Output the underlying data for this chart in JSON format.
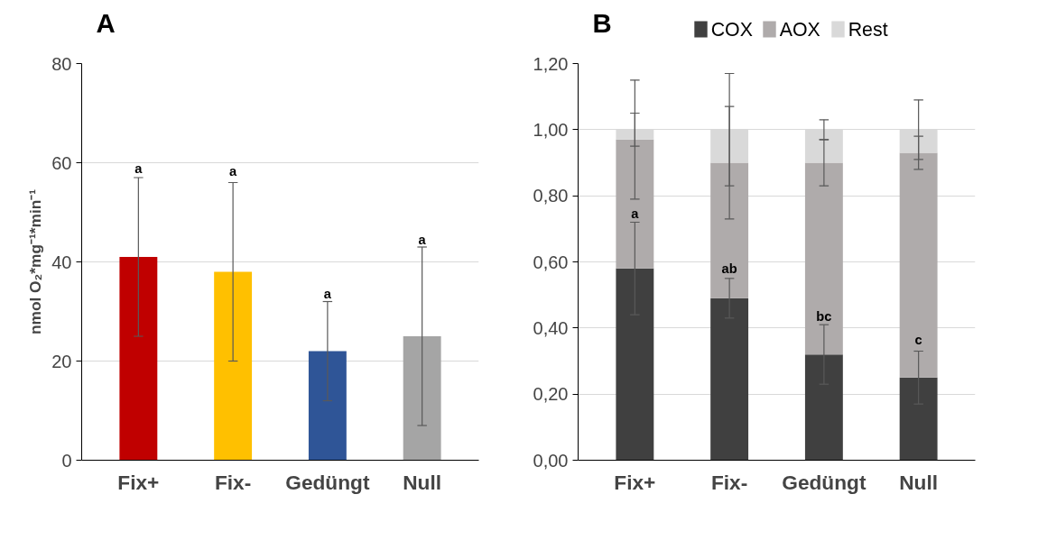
{
  "chart_data": [
    {
      "type": "bar",
      "title": "A",
      "ylabel": "nmol O₂*mg⁻¹*min⁻¹",
      "categories": [
        "Fix+",
        "Fix-",
        "Gedüngt",
        "Null"
      ],
      "values": [
        41,
        38,
        22,
        25
      ],
      "colors": [
        "#c00000",
        "#ffc000",
        "#2f5597",
        "#a5a5a5"
      ],
      "errors": [
        16,
        18,
        10,
        18
      ],
      "ylim": [
        0,
        80
      ],
      "yticks": [
        0,
        20,
        40,
        60,
        80
      ],
      "grid": "y",
      "annotations": [
        {
          "text": "a",
          "x": "Fix+",
          "y": 56.8
        },
        {
          "text": "a",
          "x": "Fix-",
          "y": 56.3
        },
        {
          "text": "a",
          "x": "Gedüngt",
          "y": 31.5
        },
        {
          "text": "a",
          "x": "Null",
          "y": 42.4
        }
      ]
    },
    {
      "type": "bar",
      "title": "B",
      "categories": [
        "Fix+",
        "Fix-",
        "Gedüngt",
        "Null"
      ],
      "stacked": true,
      "series": [
        {
          "name": "COX",
          "color": "#404040",
          "values": [
            0.58,
            0.49,
            0.32,
            0.25
          ],
          "errors": [
            0.14,
            0.06,
            0.09,
            0.08
          ]
        },
        {
          "name": "AOX",
          "color": "#afabab",
          "values": [
            0.39,
            0.41,
            0.58,
            0.68
          ],
          "errors": [
            0.18,
            0.17,
            0.07,
            0.05
          ]
        },
        {
          "name": "Rest",
          "color": "#d9d9d9",
          "values": [
            0.03,
            0.1,
            0.1,
            0.07
          ],
          "errors": [
            0.05,
            0.17,
            0.03,
            0.09
          ]
        }
      ],
      "ylim": [
        0,
        1.2
      ],
      "yticks": [
        {
          "value": 0,
          "label": "0,00"
        },
        {
          "value": 0.2,
          "label": "0,20"
        },
        {
          "value": 0.4,
          "label": "0,40"
        },
        {
          "value": 0.6,
          "label": "0,60"
        },
        {
          "value": 0.8,
          "label": "0,80"
        },
        {
          "value": 1.0,
          "label": "1,00"
        },
        {
          "value": 1.2,
          "label": "1,20"
        }
      ],
      "grid": "y",
      "legend": "top",
      "annotations": [
        {
          "text": "a",
          "x": "Fix+",
          "y": 0.715
        },
        {
          "text": "ab",
          "x": "Fix-",
          "y": 0.55
        },
        {
          "text": "bc",
          "x": "Gedüngt",
          "y": 0.405
        },
        {
          "text": "c",
          "x": "Null",
          "y": 0.335
        }
      ]
    }
  ]
}
